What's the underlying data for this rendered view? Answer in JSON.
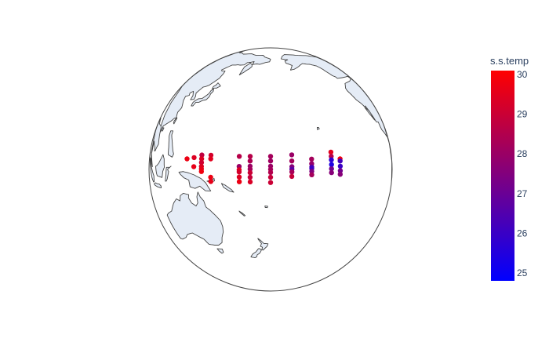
{
  "chart_data": {
    "type": "scatter",
    "projection": "orthographic",
    "colorbar": {
      "title": "s.s.temp",
      "range": [
        24.8,
        30.1
      ],
      "ticks": [
        "30",
        "29",
        "28",
        "27",
        "26",
        "25"
      ],
      "tick_values": [
        30,
        29,
        28,
        27,
        26,
        25
      ],
      "colorscale": [
        "#0000ff",
        "#ff0000"
      ]
    },
    "colors": {
      "land": "#e5ecf6",
      "coast": "#444444",
      "globe_outline": "#444444"
    },
    "points_lon_lat_temp": [
      [
        136.4,
        5.0,
        29.7
      ],
      [
        140.8,
        5.6,
        29.4
      ],
      [
        140.8,
        1.3,
        29.6
      ],
      [
        145.3,
        6.8,
        28.8
      ],
      [
        145.3,
        5.0,
        29.4
      ],
      [
        145.3,
        3.3,
        29.1
      ],
      [
        145.3,
        1.4,
        29.4
      ],
      [
        145.3,
        0.2,
        29.6
      ],
      [
        145.3,
        -1.0,
        29.8
      ],
      [
        150.4,
        6.7,
        29.2
      ],
      [
        150.4,
        5.0,
        29.5
      ],
      [
        150.4,
        -3.7,
        29.7
      ],
      [
        150.4,
        -5.7,
        29.6
      ],
      [
        165.0,
        6.2,
        28.6
      ],
      [
        165.0,
        1.4,
        28.0
      ],
      [
        165.0,
        -0.2,
        29.5
      ],
      [
        165.0,
        -1.2,
        29.2
      ],
      [
        165.0,
        -3.6,
        29.4
      ],
      [
        165.0,
        -5.8,
        29.7
      ],
      [
        170.3,
        6.2,
        28.6
      ],
      [
        170.3,
        4.0,
        28.4
      ],
      [
        170.3,
        1.5,
        28.0
      ],
      [
        170.3,
        0.1,
        28.2
      ],
      [
        170.3,
        -1.5,
        29.0
      ],
      [
        170.3,
        -3.7,
        28.9
      ],
      [
        170.3,
        -5.9,
        29.3
      ],
      [
        180.0,
        6.2,
        28.2
      ],
      [
        180.0,
        4.0,
        28.1
      ],
      [
        180.0,
        1.5,
        28.0
      ],
      [
        180.0,
        0.0,
        28.2
      ],
      [
        180.0,
        -1.4,
        28.5
      ],
      [
        180.0,
        -3.7,
        28.9
      ],
      [
        180.0,
        -6.2,
        29.0
      ],
      [
        190.1,
        6.9,
        28.0
      ],
      [
        190.1,
        4.0,
        28.2
      ],
      [
        190.1,
        1.3,
        27.6
      ],
      [
        190.1,
        0.1,
        26.7
      ],
      [
        190.1,
        -1.2,
        28.3
      ],
      [
        190.1,
        -3.3,
        28.9
      ],
      [
        199.8,
        4.9,
        28.2
      ],
      [
        199.8,
        2.7,
        27.9
      ],
      [
        199.8,
        1.1,
        26.5
      ],
      [
        199.8,
        0.4,
        26.0
      ],
      [
        199.8,
        -0.9,
        27.5
      ],
      [
        199.8,
        -2.5,
        28.2
      ],
      [
        210.1,
        8.2,
        29.5
      ],
      [
        210.1,
        6.2,
        28.6
      ],
      [
        210.1,
        4.5,
        25.7
      ],
      [
        210.1,
        2.3,
        25.4
      ],
      [
        210.1,
        0.3,
        27.2
      ],
      [
        210.1,
        -1.5,
        27.6
      ],
      [
        215.0,
        5.0,
        29.8
      ],
      [
        215.0,
        4.0,
        26.2
      ],
      [
        215.0,
        1.5,
        26.0
      ],
      [
        215.0,
        -0.6,
        27.2
      ],
      [
        215.0,
        -2.3,
        27.6
      ]
    ]
  }
}
